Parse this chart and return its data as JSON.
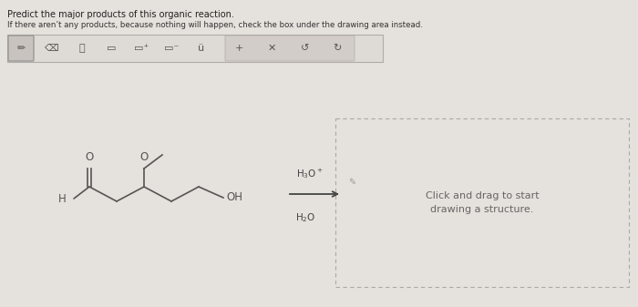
{
  "bg_color": "#e5e1dc",
  "title_line1": "Predict the major products of this organic reaction.",
  "title_line2": "If there aren’t any products, because nothing will happen, check the box under the drawing area instead.",
  "click_drag_text": "Click and drag to start\ndrawing a structure.",
  "mol_color": "#555555",
  "reagent_color": "#444444",
  "toolbar_bg": "#dedad5",
  "toolbar_sel_bg": "#c8c3be",
  "toolbar_border": "#b0aba6",
  "product_box_color": "#aaaaaa",
  "arrow_color": "#444444"
}
